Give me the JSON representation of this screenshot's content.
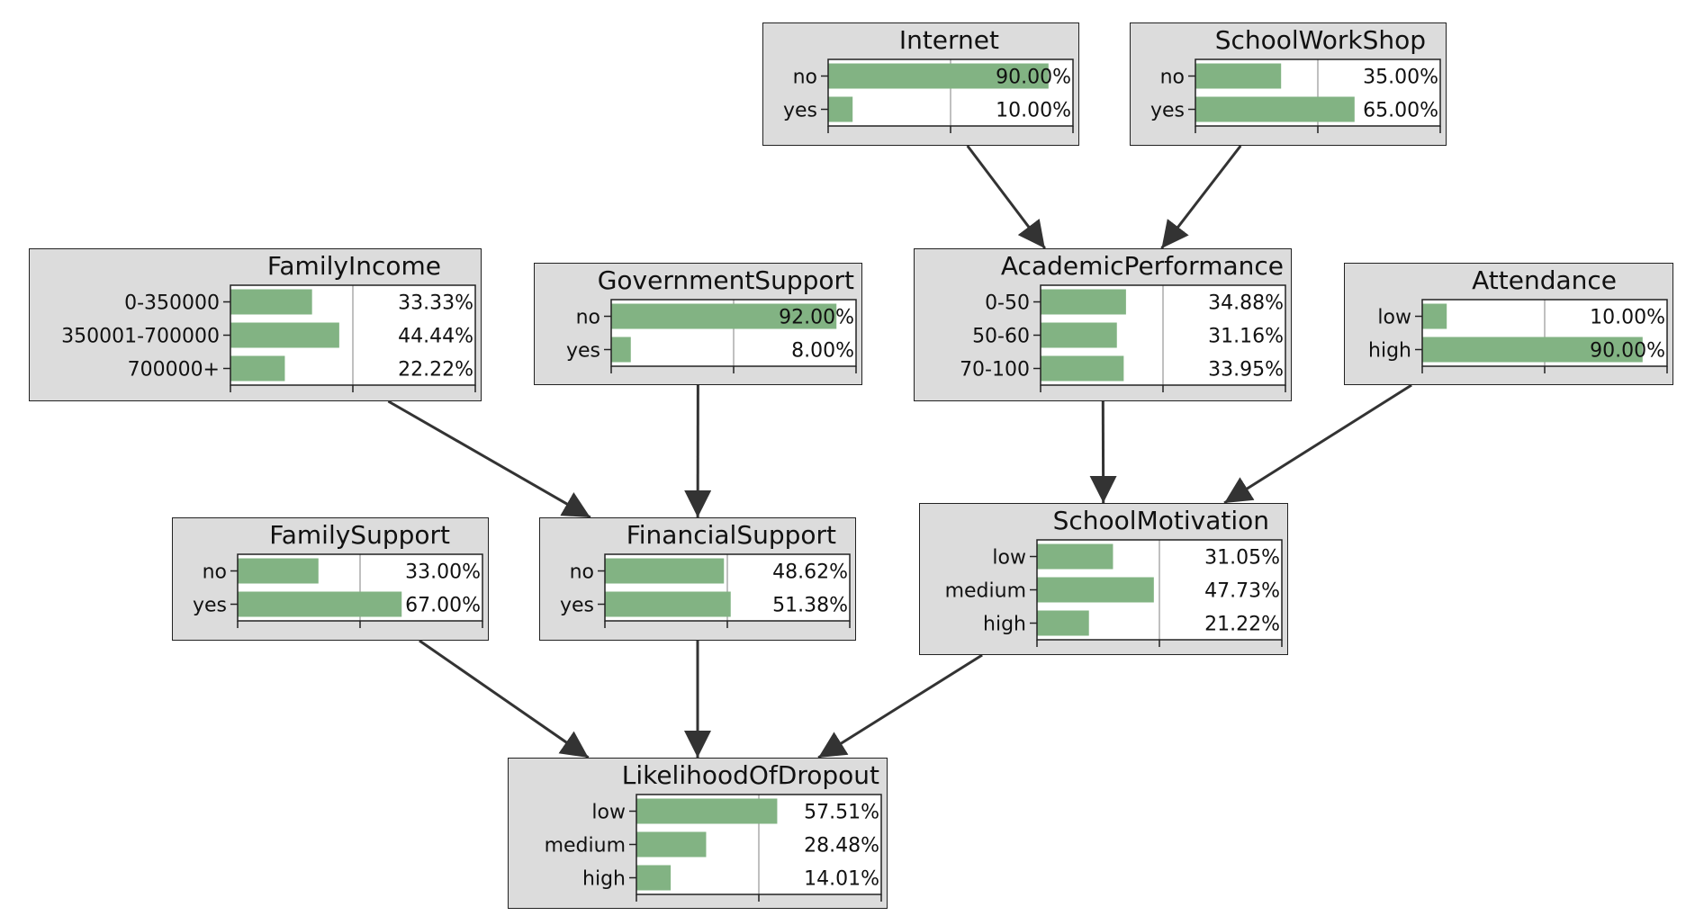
{
  "colors": {
    "node_fill": "#dcdcdc",
    "node_border": "#222222",
    "bar": "#82b383",
    "edge": "#333333"
  },
  "nodes": [
    {
      "id": "internet",
      "title": "Internet",
      "states": [
        {
          "label": "no",
          "value": 90.0,
          "text": "90.00%"
        },
        {
          "label": "yes",
          "value": 10.0,
          "text": "10.00%"
        }
      ]
    },
    {
      "id": "schoolworkshop",
      "title": "SchoolWorkShop",
      "states": [
        {
          "label": "no",
          "value": 35.0,
          "text": "35.00%"
        },
        {
          "label": "yes",
          "value": 65.0,
          "text": "65.00%"
        }
      ]
    },
    {
      "id": "familyincome",
      "title": "FamilyIncome",
      "states": [
        {
          "label": "0-350000",
          "value": 33.33,
          "text": "33.33%"
        },
        {
          "label": "350001-700000",
          "value": 44.44,
          "text": "44.44%"
        },
        {
          "label": "700000+",
          "value": 22.22,
          "text": "22.22%"
        }
      ]
    },
    {
      "id": "governmentsupport",
      "title": "GovernmentSupport",
      "states": [
        {
          "label": "no",
          "value": 92.0,
          "text": "92.00%"
        },
        {
          "label": "yes",
          "value": 8.0,
          "text": "8.00%"
        }
      ]
    },
    {
      "id": "academicperformance",
      "title": "AcademicPerformance",
      "states": [
        {
          "label": "0-50",
          "value": 34.88,
          "text": "34.88%"
        },
        {
          "label": "50-60",
          "value": 31.16,
          "text": "31.16%"
        },
        {
          "label": "70-100",
          "value": 33.95,
          "text": "33.95%"
        }
      ]
    },
    {
      "id": "attendance",
      "title": "Attendance",
      "states": [
        {
          "label": "low",
          "value": 10.0,
          "text": "10.00%"
        },
        {
          "label": "high",
          "value": 90.0,
          "text": "90.00%"
        }
      ]
    },
    {
      "id": "familysupport",
      "title": "FamilySupport",
      "states": [
        {
          "label": "no",
          "value": 33.0,
          "text": "33.00%"
        },
        {
          "label": "yes",
          "value": 67.0,
          "text": "67.00%"
        }
      ]
    },
    {
      "id": "financialsupport",
      "title": "FinancialSupport",
      "states": [
        {
          "label": "no",
          "value": 48.62,
          "text": "48.62%"
        },
        {
          "label": "yes",
          "value": 51.38,
          "text": "51.38%"
        }
      ]
    },
    {
      "id": "schoolmotivation",
      "title": "SchoolMotivation",
      "states": [
        {
          "label": "low",
          "value": 31.05,
          "text": "31.05%"
        },
        {
          "label": "medium",
          "value": 47.73,
          "text": "47.73%"
        },
        {
          "label": "high",
          "value": 21.22,
          "text": "21.22%"
        }
      ]
    },
    {
      "id": "likelihoodofdropout",
      "title": "LikelihoodOfDropout",
      "states": [
        {
          "label": "low",
          "value": 57.51,
          "text": "57.51%"
        },
        {
          "label": "medium",
          "value": 28.48,
          "text": "28.48%"
        },
        {
          "label": "high",
          "value": 14.01,
          "text": "14.01%"
        }
      ]
    }
  ],
  "edges": [
    {
      "from": "internet",
      "to": "academicperformance"
    },
    {
      "from": "schoolworkshop",
      "to": "academicperformance"
    },
    {
      "from": "familyincome",
      "to": "financialsupport"
    },
    {
      "from": "governmentsupport",
      "to": "financialsupport"
    },
    {
      "from": "academicperformance",
      "to": "schoolmotivation"
    },
    {
      "from": "attendance",
      "to": "schoolmotivation"
    },
    {
      "from": "familysupport",
      "to": "likelihoodofdropout"
    },
    {
      "from": "financialsupport",
      "to": "likelihoodofdropout"
    },
    {
      "from": "schoolmotivation",
      "to": "likelihoodofdropout"
    }
  ]
}
